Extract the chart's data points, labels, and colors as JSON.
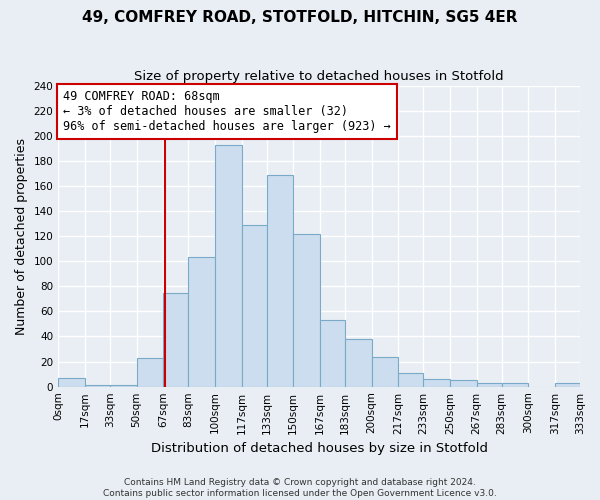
{
  "title": "49, COMFREY ROAD, STOTFOLD, HITCHIN, SG5 4ER",
  "subtitle": "Size of property relative to detached houses in Stotfold",
  "xlabel": "Distribution of detached houses by size in Stotfold",
  "ylabel": "Number of detached properties",
  "bin_labels": [
    "0sqm",
    "17sqm",
    "33sqm",
    "50sqm",
    "67sqm",
    "83sqm",
    "100sqm",
    "117sqm",
    "133sqm",
    "150sqm",
    "167sqm",
    "183sqm",
    "200sqm",
    "217sqm",
    "233sqm",
    "250sqm",
    "267sqm",
    "283sqm",
    "300sqm",
    "317sqm",
    "333sqm"
  ],
  "bin_edges": [
    0,
    17,
    33,
    50,
    67,
    83,
    100,
    117,
    133,
    150,
    167,
    183,
    200,
    217,
    233,
    250,
    267,
    283,
    300,
    317,
    333
  ],
  "counts": [
    7,
    1,
    1,
    23,
    75,
    103,
    193,
    129,
    169,
    122,
    53,
    38,
    24,
    11,
    6,
    5,
    3,
    3,
    0,
    3
  ],
  "bar_color": "#ccddef",
  "bar_edge_color": "#7aaac8",
  "vline_x": 68,
  "vline_color": "#cc0000",
  "annotation_box_color": "#cc0000",
  "annotation_lines": [
    "49 COMFREY ROAD: 68sqm",
    "← 3% of detached houses are smaller (32)",
    "96% of semi-detached houses are larger (923) →"
  ],
  "ylim": [
    0,
    240
  ],
  "yticks": [
    0,
    20,
    40,
    60,
    80,
    100,
    120,
    140,
    160,
    180,
    200,
    220,
    240
  ],
  "footer_lines": [
    "Contains HM Land Registry data © Crown copyright and database right 2024.",
    "Contains public sector information licensed under the Open Government Licence v3.0."
  ],
  "background_color": "#e8eef4",
  "plot_bg_color": "#e8eef4",
  "grid_color": "#ffffff",
  "title_fontsize": 11,
  "subtitle_fontsize": 9.5,
  "axis_label_fontsize": 9,
  "tick_fontsize": 7.5,
  "footer_fontsize": 6.5,
  "annotation_fontsize": 8.5
}
